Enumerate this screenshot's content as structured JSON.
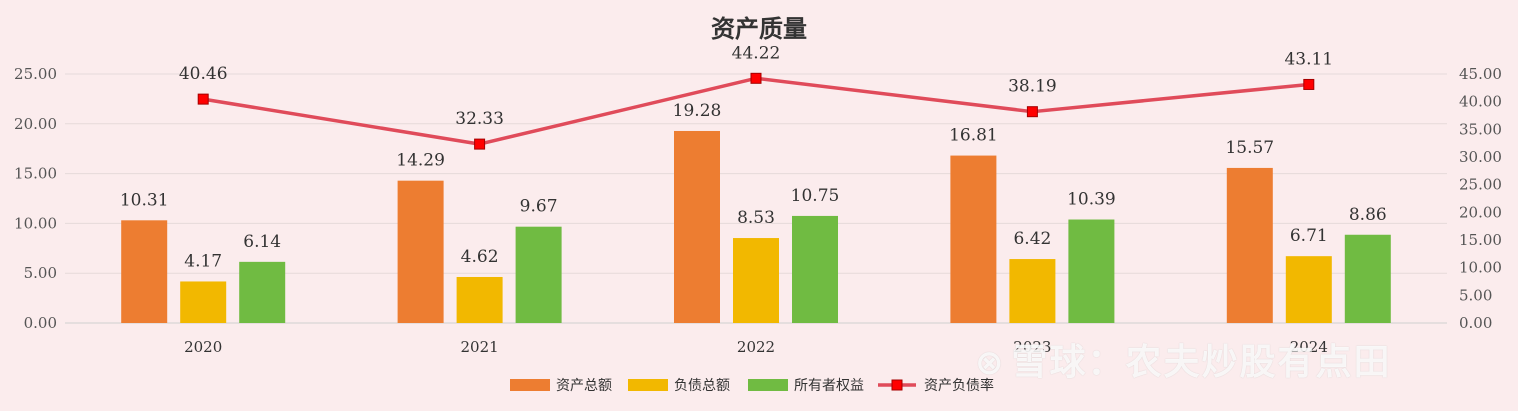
{
  "chart_data": {
    "type": "bar",
    "title": "资产质量",
    "categories": [
      "2020",
      "2021",
      "2022",
      "2023",
      "2024"
    ],
    "series": [
      {
        "name": "资产总额",
        "type": "bar",
        "axis": "left",
        "color": "#ed7d31",
        "values": [
          10.31,
          14.29,
          19.28,
          16.81,
          15.57
        ]
      },
      {
        "name": "负债总额",
        "type": "bar",
        "axis": "left",
        "color": "#f2b800",
        "values": [
          4.17,
          4.62,
          8.53,
          6.42,
          6.71
        ]
      },
      {
        "name": "所有者权益",
        "type": "bar",
        "axis": "left",
        "color": "#70bb42",
        "values": [
          6.14,
          9.67,
          10.75,
          10.39,
          8.86
        ]
      },
      {
        "name": "资产负债率",
        "type": "line",
        "axis": "right",
        "color": "#e04b5a",
        "marker_color": "#ff0000",
        "values": [
          40.46,
          32.33,
          44.22,
          38.19,
          43.11
        ]
      }
    ],
    "left_axis": {
      "range": [
        0,
        25
      ],
      "ticks": [
        "0.00",
        "5.00",
        "10.00",
        "15.00",
        "20.00",
        "25.00"
      ]
    },
    "right_axis": {
      "range": [
        0,
        45
      ],
      "ticks": [
        "0.00",
        "5.00",
        "10.00",
        "15.00",
        "20.00",
        "25.00",
        "30.00",
        "35.00",
        "40.00",
        "45.00"
      ]
    },
    "grid": true,
    "legend_position": "bottom"
  },
  "watermark": {
    "logo": "⊗",
    "text": "雪球：农夫炒股有点田"
  }
}
